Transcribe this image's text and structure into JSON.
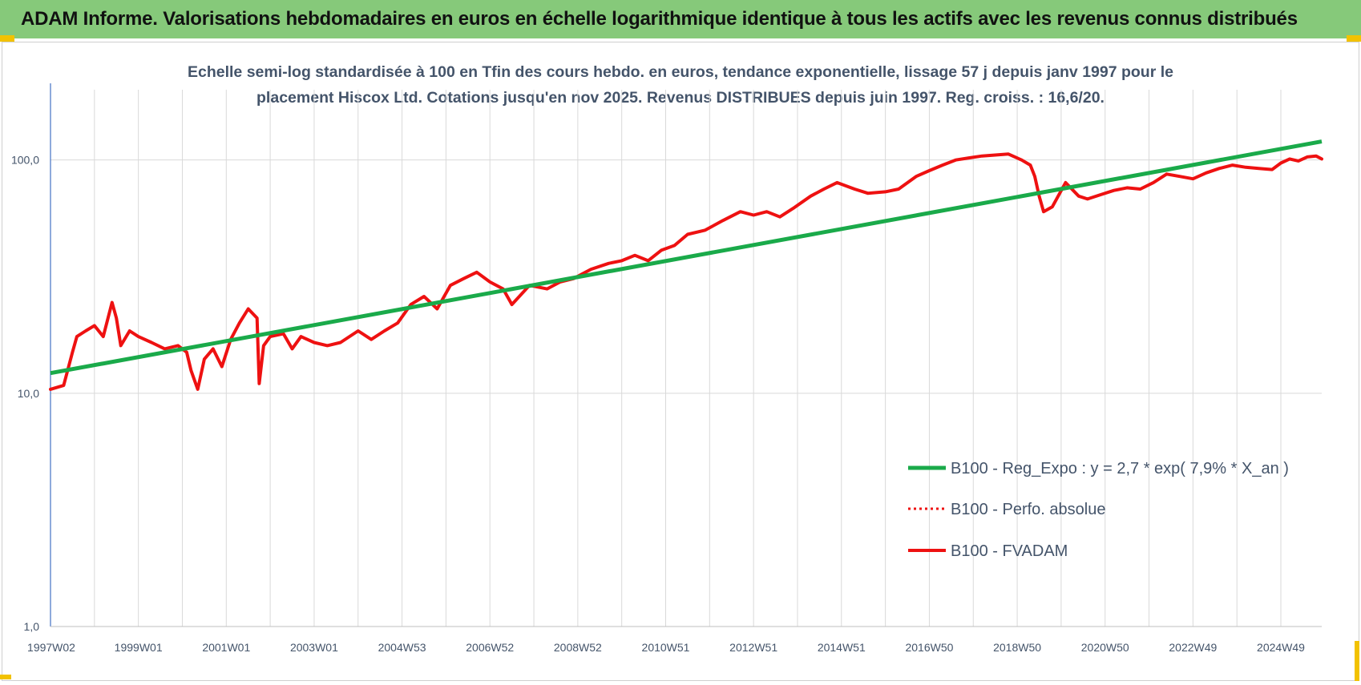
{
  "banner": {
    "title": "ADAM Informe. Valorisations hebdomadaires en euros en échelle logarithmique identique à tous les actifs avec les revenus connus distribués"
  },
  "colors": {
    "banner_bg": "#86c97a",
    "regression": "#1aaa4a",
    "fvadam": "#ee1111",
    "perfo": "#ee1111",
    "grid": "#d9d9d9",
    "text": "#44546a",
    "corner": "#f2c200"
  },
  "chart_data": {
    "type": "line",
    "title_line1": "Echelle semi-log standardisée à 100 en Tfin des cours hebdo. en euros, tendance exponentielle, lissage 57 j depuis janv 1997 pour le",
    "title_line2": "placement Hiscox Ltd. Cotations jusqu'en nov 2025. Revenus DISTRIBUES depuis juin 1997. Reg. croiss. : 16,6/20.",
    "y_scale": "log",
    "ylim": [
      1,
      200
    ],
    "y_ticks": [
      {
        "value": 1,
        "label": "1,0"
      },
      {
        "value": 10,
        "label": "10,0"
      },
      {
        "value": 100,
        "label": "100,0"
      }
    ],
    "xlim": [
      1997.0,
      2025.93
    ],
    "x_ticks": [
      {
        "x": 1997.0,
        "label": "1997W02"
      },
      {
        "x": 1999.0,
        "label": "1999W01"
      },
      {
        "x": 2001.0,
        "label": "2001W01"
      },
      {
        "x": 2003.0,
        "label": "2003W01"
      },
      {
        "x": 2005.0,
        "label": "2004W53"
      },
      {
        "x": 2007.0,
        "label": "2006W52"
      },
      {
        "x": 2009.0,
        "label": "2008W52"
      },
      {
        "x": 2011.0,
        "label": "2010W51"
      },
      {
        "x": 2013.0,
        "label": "2012W51"
      },
      {
        "x": 2015.0,
        "label": "2014W51"
      },
      {
        "x": 2017.0,
        "label": "2016W50"
      },
      {
        "x": 2019.0,
        "label": "2018W50"
      },
      {
        "x": 2021.0,
        "label": "2020W50"
      },
      {
        "x": 2023.0,
        "label": "2022W49"
      },
      {
        "x": 2025.0,
        "label": "2024W49"
      }
    ],
    "grid": true,
    "legend_position": "right-middle",
    "series": [
      {
        "name": "B100 - Reg_Expo : y = 2,7 * exp( 7,9% *  X_an )",
        "style": "solid-green-thick",
        "x": [
          1997.0,
          2025.93
        ],
        "y": [
          12.2,
          120
        ]
      },
      {
        "name": "B100 - Perfo. absolue",
        "style": "dotted-red",
        "x": [],
        "y": []
      },
      {
        "name": "B100 - FVADAM",
        "style": "solid-red-thick",
        "x": [
          1997.0,
          1997.3,
          1997.5,
          1997.6,
          1997.8,
          1998.0,
          1998.2,
          1998.4,
          1998.5,
          1998.6,
          1998.8,
          1999.0,
          1999.3,
          1999.6,
          1999.9,
          2000.1,
          2000.2,
          2000.35,
          2000.5,
          2000.7,
          2000.9,
          2001.1,
          2001.3,
          2001.5,
          2001.7,
          2001.75,
          2001.85,
          2002.0,
          2002.3,
          2002.5,
          2002.7,
          2003.0,
          2003.3,
          2003.6,
          2004.0,
          2004.3,
          2004.6,
          2004.9,
          2005.2,
          2005.5,
          2005.8,
          2006.1,
          2006.4,
          2006.7,
          2007.0,
          2007.3,
          2007.5,
          2007.9,
          2008.3,
          2008.6,
          2008.9,
          2009.3,
          2009.7,
          2010.0,
          2010.3,
          2010.6,
          2010.9,
          2011.2,
          2011.5,
          2011.9,
          2012.3,
          2012.7,
          2013.0,
          2013.3,
          2013.6,
          2013.9,
          2014.3,
          2014.6,
          2014.9,
          2015.3,
          2015.6,
          2016.0,
          2016.3,
          2016.7,
          2017.0,
          2017.3,
          2017.6,
          2017.9,
          2018.2,
          2018.5,
          2018.8,
          2019.1,
          2019.3,
          2019.4,
          2019.5,
          2019.6,
          2019.8,
          2020.1,
          2020.4,
          2020.6,
          2020.9,
          2021.2,
          2021.5,
          2021.8,
          2022.1,
          2022.4,
          2022.7,
          2023.0,
          2023.3,
          2023.6,
          2023.9,
          2024.2,
          2024.5,
          2024.8,
          2025.0,
          2025.2,
          2025.4,
          2025.6,
          2025.8,
          2025.93
        ],
        "y": [
          10.4,
          10.8,
          15.0,
          17.5,
          18.5,
          19.5,
          17.5,
          24.5,
          21.0,
          16.0,
          18.5,
          17.5,
          16.5,
          15.5,
          16.0,
          15.0,
          12.5,
          10.4,
          14.0,
          15.5,
          13.0,
          17.0,
          20.0,
          23.0,
          21.0,
          11.0,
          16.0,
          17.5,
          18.0,
          15.5,
          17.5,
          16.5,
          16.0,
          16.5,
          18.5,
          17.0,
          18.5,
          20.0,
          24.0,
          26.0,
          23.0,
          29.0,
          31.0,
          33.0,
          30.0,
          28.0,
          24.0,
          29.0,
          28.0,
          30.0,
          31.0,
          34.0,
          36.0,
          37.0,
          39.0,
          37.0,
          41.0,
          43.0,
          48.0,
          50.0,
          55.0,
          60.0,
          58.0,
          60.0,
          57.0,
          62.0,
          70.0,
          75.0,
          80.0,
          75.0,
          72.0,
          73.0,
          75.0,
          85.0,
          90.0,
          95.0,
          100.0,
          102.0,
          104.0,
          105.0,
          106.0,
          100.0,
          95.0,
          85.0,
          70.0,
          60.0,
          63.0,
          80.0,
          70.0,
          68.0,
          71.0,
          74.0,
          76.0,
          75.0,
          80.0,
          87.0,
          85.0,
          83.0,
          88.0,
          92.0,
          95.0,
          93.0,
          92.0,
          91.0,
          97.0,
          101.0,
          99.0,
          103.0,
          104.0,
          101.0
        ]
      }
    ]
  }
}
